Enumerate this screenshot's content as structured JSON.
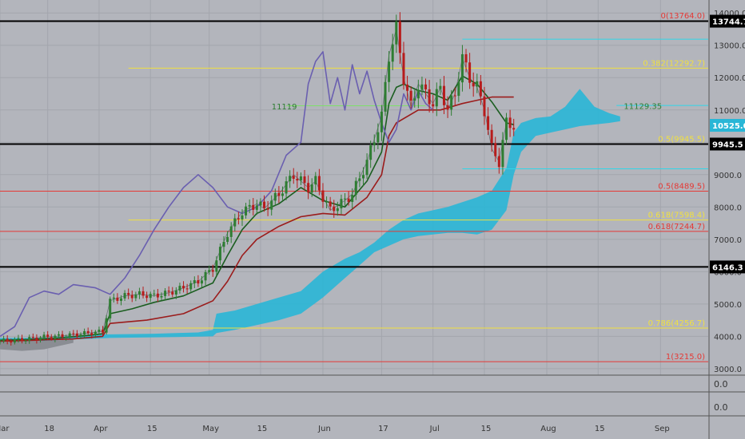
{
  "chart_data": {
    "type": "line",
    "colors": {
      "background": "#b3b5bc",
      "grid": "#a3a6ad",
      "candle_up": "#2e7d32",
      "candle_down": "#b71c1c",
      "cloud": "#29b6d6",
      "cloud_bottom": "#8a8d93",
      "conversion_line": "#1b5e20",
      "base_line": "#9b1c1c",
      "lagging_span": "#6a5fb0",
      "fib_red": "#e53935",
      "fib_yellow": "#f0e040",
      "fib_cyan": "#2fd6e8",
      "key_level": "#000000"
    },
    "x_axis": {
      "ticks": [
        {
          "label": "Mar",
          "index": 0
        },
        {
          "label": "18",
          "index": 13
        },
        {
          "label": "Apr",
          "index": 27
        },
        {
          "label": "15",
          "index": 41
        },
        {
          "label": "May",
          "index": 57
        },
        {
          "label": "15",
          "index": 71
        },
        {
          "label": "Jun",
          "index": 88
        },
        {
          "label": "17",
          "index": 104
        },
        {
          "label": "Jul",
          "index": 118
        },
        {
          "label": "15",
          "index": 132
        },
        {
          "label": "Aug",
          "index": 149
        },
        {
          "label": "15",
          "index": 163
        },
        {
          "label": "Sep",
          "index": 180
        }
      ],
      "range": [
        0,
        193
      ]
    },
    "y_axis": {
      "ticks": [
        "3000.0",
        "4000.0",
        "5000.0",
        "6000.0",
        "7000.0",
        "8000.0",
        "9000.0",
        "10000.0",
        "11000.0",
        "12000.0",
        "13000.0",
        "14000.0"
      ],
      "range": [
        2800,
        14400
      ],
      "scale": "linear"
    },
    "sub_panes": [
      {
        "tick_label": "0.0"
      },
      {
        "tick_label": "0.0"
      }
    ],
    "price_badges": [
      {
        "label": "13744.7",
        "value": 13744.7,
        "style": "black"
      },
      {
        "label": "10525.0",
        "value": 10525,
        "style": "cyan"
      },
      {
        "label": "9945.5",
        "value": 9945.5,
        "style": "black"
      },
      {
        "label": "6146.3",
        "value": 6146.3,
        "style": "black"
      }
    ],
    "horizontal_levels": [
      {
        "value": 13744.7,
        "color": "key_level",
        "start": 0,
        "end": 193,
        "weight": 2
      },
      {
        "value": 9945.5,
        "color": "key_level",
        "start": 0,
        "end": 193,
        "weight": 2
      },
      {
        "value": 6146.3,
        "color": "key_level",
        "start": 0,
        "end": 193,
        "weight": 2
      },
      {
        "value": 8489.5,
        "color": "fib_red",
        "start": 0,
        "end": 193,
        "weight": 1
      },
      {
        "value": 7244.7,
        "color": "fib_red",
        "start": 0,
        "end": 193,
        "weight": 1
      },
      {
        "value": 3215.0,
        "color": "fib_red",
        "start": 0,
        "end": 193,
        "weight": 1
      },
      {
        "value": 12292.7,
        "color": "fib_yellow",
        "start": 35,
        "end": 193,
        "weight": 1
      },
      {
        "value": 7598.4,
        "color": "fib_yellow",
        "start": 35,
        "end": 193,
        "weight": 1
      },
      {
        "value": 4256.7,
        "color": "fib_yellow",
        "start": 35,
        "end": 193,
        "weight": 1
      },
      {
        "value": 13188,
        "color": "fib_cyan",
        "start": 126,
        "end": 193,
        "weight": 1
      },
      {
        "value": 9180,
        "color": "fib_cyan",
        "start": 126,
        "end": 193,
        "weight": 1
      },
      {
        "value": 11140,
        "color": "fib_cyan",
        "start": 168,
        "end": 193,
        "weight": 1
      },
      {
        "value": 11130,
        "color": "#7ee06a",
        "start": 78,
        "end": 116,
        "weight": 1
      }
    ],
    "level_labels": [
      {
        "text": "0(13764.0)",
        "value": 13764,
        "color": "fib_red"
      },
      {
        "text": "0.382(12292.7)",
        "value": 12292.7,
        "color": "fib_yellow"
      },
      {
        "text": "0.5(9945.5)",
        "value": 9945.5,
        "color": "fib_yellow"
      },
      {
        "text": "0.5(8489.5)",
        "value": 8489.5,
        "color": "fib_red"
      },
      {
        "text": "0.618(7598.4)",
        "value": 7598.4,
        "color": "fib_yellow"
      },
      {
        "text": "0.618(7244.7)",
        "value": 7244.7,
        "color": "fib_red"
      },
      {
        "text": "0.786(4256.7)",
        "value": 4256.7,
        "color": "fib_yellow"
      },
      {
        "text": "1(3215.0)",
        "value": 3215,
        "color": "fib_red"
      }
    ],
    "annotations": [
      {
        "text": "11119",
        "x": 74,
        "y": 11119,
        "color": "#2e7d32"
      },
      {
        "text": "11129.35",
        "x": 170,
        "y": 11129.35,
        "color": "#2e7d32"
      }
    ],
    "cloud": {
      "x": [
        0,
        6,
        12,
        18,
        24,
        30,
        36,
        42,
        48,
        54,
        58,
        59,
        64,
        70,
        76,
        82,
        88,
        94,
        98,
        102,
        106,
        110,
        114,
        118,
        122,
        126,
        130,
        134,
        138,
        140,
        142,
        146,
        150,
        154,
        158,
        162,
        166,
        169
      ],
      "top": [
        3950,
        3950,
        3950,
        4000,
        4050,
        4060,
        4070,
        4080,
        4100,
        4120,
        4200,
        4700,
        4800,
        5000,
        5200,
        5400,
        6000,
        6400,
        6600,
        6900,
        7300,
        7600,
        7800,
        7900,
        8000,
        8150,
        8300,
        8500,
        9200,
        10300,
        10600,
        10750,
        10800,
        11100,
        11650,
        11100,
        10900,
        10800
      ],
      "bottom": [
        3800,
        3850,
        3850,
        3900,
        3920,
        3950,
        3960,
        3970,
        3980,
        3990,
        4000,
        4100,
        4200,
        4350,
        4500,
        4700,
        5200,
        5800,
        6200,
        6600,
        6800,
        7000,
        7100,
        7150,
        7200,
        7200,
        7150,
        7300,
        7900,
        9000,
        9700,
        10200,
        10300,
        10400,
        10500,
        10550,
        10600,
        10650
      ]
    },
    "series": [
      {
        "name": "Price",
        "color": "#263238",
        "x": [
          0,
          4,
          8,
          12,
          16,
          20,
          24,
          28,
          30,
          34,
          38,
          42,
          46,
          50,
          54,
          58,
          62,
          66,
          70,
          72,
          76,
          80,
          84,
          86,
          88,
          90,
          94,
          96,
          100,
          104,
          106,
          108,
          110,
          112,
          114,
          116,
          118,
          120,
          122,
          124,
          126,
          128,
          130,
          132,
          134,
          136,
          138,
          140
        ],
        "y": [
          3850,
          3880,
          3920,
          3980,
          4000,
          4050,
          4100,
          4150,
          5100,
          5250,
          5300,
          5250,
          5350,
          5500,
          5700,
          6100,
          7200,
          7850,
          8100,
          7950,
          8400,
          9000,
          8600,
          8800,
          8300,
          7900,
          8200,
          8400,
          9400,
          10800,
          12700,
          13500,
          12000,
          11100,
          11800,
          11500,
          11200,
          11700,
          11000,
          11500,
          12600,
          12000,
          11700,
          11000,
          9800,
          9400,
          10600,
          10525
        ]
      },
      {
        "name": "",
        "color": "#1b5e20",
        "x": [
          0,
          8,
          16,
          24,
          28,
          30,
          36,
          42,
          50,
          58,
          62,
          66,
          70,
          76,
          82,
          88,
          94,
          100,
          104,
          106,
          108,
          110,
          114,
          118,
          122,
          126,
          130,
          134,
          138,
          140
        ],
        "y": [
          3880,
          3900,
          3950,
          4030,
          4080,
          4700,
          4850,
          5050,
          5250,
          5650,
          6500,
          7300,
          7800,
          8100,
          8600,
          8200,
          8000,
          8800,
          9700,
          11200,
          11700,
          11800,
          11600,
          11500,
          11300,
          12050,
          11800,
          11250,
          10600,
          10550
        ]
      },
      {
        "name": "",
        "color": "#9b1c1c",
        "x": [
          0,
          10,
          20,
          28,
          30,
          40,
          50,
          58,
          62,
          66,
          70,
          76,
          82,
          88,
          94,
          100,
          104,
          106,
          108,
          114,
          120,
          126,
          130,
          134,
          138,
          140
        ],
        "y": [
          3850,
          3880,
          3920,
          4000,
          4400,
          4500,
          4700,
          5100,
          5700,
          6500,
          7000,
          7400,
          7700,
          7800,
          7750,
          8300,
          9000,
          10200,
          10600,
          11000,
          11000,
          11200,
          11300,
          11400,
          11400,
          11400
        ]
      },
      {
        "name": "",
        "color": "#6a5fb0",
        "x": [
          0,
          4,
          8,
          12,
          16,
          20,
          26,
          30,
          34,
          38,
          42,
          46,
          50,
          54,
          58,
          62,
          66,
          70,
          74,
          78,
          82,
          84,
          86,
          88,
          90,
          92,
          94,
          96,
          98,
          100,
          102,
          104,
          106,
          108,
          110,
          112,
          114,
          116,
          118
        ],
        "y": [
          4000,
          4300,
          5200,
          5400,
          5300,
          5600,
          5500,
          5300,
          5800,
          6500,
          7300,
          8000,
          8600,
          9000,
          8600,
          8000,
          7800,
          8000,
          8500,
          9600,
          10000,
          11800,
          12500,
          12800,
          11200,
          12000,
          11000,
          12400,
          11500,
          12200,
          11300,
          10600,
          10000,
          10400,
          11500,
          11000,
          11600,
          11200,
          11000
        ]
      }
    ]
  }
}
